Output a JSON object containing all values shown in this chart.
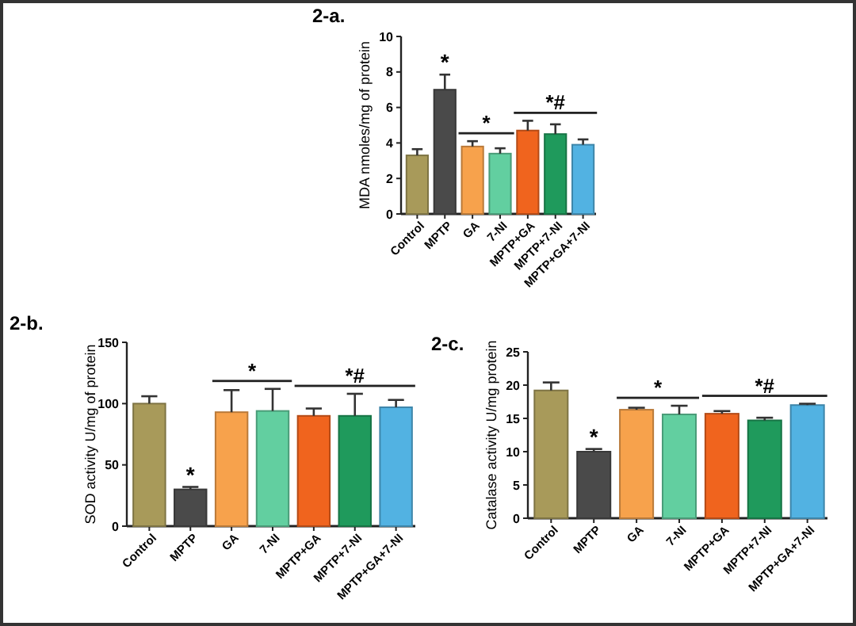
{
  "chart_data": [
    {
      "type": "bar",
      "title": "2-a.",
      "ylabel": "MDA nmoles/mg of protein",
      "categories": [
        "Control",
        "MPTP",
        "GA",
        "7-NI",
        "MPTP+GA",
        "MPTP+7-NI",
        "MPTP+GA+7-NI"
      ],
      "colors": [
        "#a89a5a",
        "#4a4a4a",
        "#f7a24c",
        "#62cfa0",
        "#f0641e",
        "#1f9a5c",
        "#52b2e2"
      ],
      "values": [
        3.3,
        7.0,
        3.8,
        3.4,
        4.7,
        4.5,
        3.9
      ],
      "errors": [
        [
          3.3,
          3.65
        ],
        [
          7.0,
          7.85
        ],
        [
          3.8,
          4.1
        ],
        [
          3.4,
          3.7
        ],
        [
          4.7,
          5.25
        ],
        [
          4.5,
          5.05
        ],
        [
          3.9,
          4.2
        ]
      ],
      "ylim": [
        0,
        10
      ],
      "yticks": [
        0,
        2,
        4,
        6,
        8,
        10
      ],
      "annotations": [
        "*",
        "*",
        "*#"
      ]
    },
    {
      "type": "bar",
      "title": "2-b.",
      "ylabel": "SOD activity U/mg of protein",
      "categories": [
        "Control",
        "MPTP",
        "GA",
        "7-NI",
        "MPTP+GA",
        "MPTP+7-NI",
        "MPTP+GA+7-NI"
      ],
      "colors": [
        "#a89a5a",
        "#4a4a4a",
        "#f7a24c",
        "#62cfa0",
        "#f0641e",
        "#1f9a5c",
        "#52b2e2"
      ],
      "values": [
        100,
        30,
        93,
        94,
        90,
        90,
        97
      ],
      "errors": [
        [
          100,
          106
        ],
        [
          30,
          32
        ],
        [
          93,
          111
        ],
        [
          94,
          112
        ],
        [
          90,
          96
        ],
        [
          90,
          108
        ],
        [
          97,
          103
        ]
      ],
      "ylim": [
        0,
        150
      ],
      "yticks": [
        0,
        50,
        100,
        150
      ],
      "annotations": [
        "*",
        "*",
        "*#"
      ]
    },
    {
      "type": "bar",
      "title": "2-c.",
      "ylabel": "Catalase activity U/mg protein",
      "categories": [
        "Control",
        "MPTP",
        "GA",
        "7-NI",
        "MPTP+GA",
        "MPTP+7-NI",
        "MPTP+GA+7-NI"
      ],
      "colors": [
        "#a89a5a",
        "#4a4a4a",
        "#f7a24c",
        "#62cfa0",
        "#f0641e",
        "#1f9a5c",
        "#52b2e2"
      ],
      "values": [
        19.2,
        10.0,
        16.3,
        15.6,
        15.7,
        14.7,
        17.0
      ],
      "errors": [
        [
          19.2,
          20.4
        ],
        [
          10.0,
          10.4
        ],
        [
          16.3,
          16.6
        ],
        [
          15.6,
          16.9
        ],
        [
          15.7,
          16.1
        ],
        [
          14.7,
          15.1
        ],
        [
          17.0,
          17.2
        ]
      ],
      "ylim": [
        0,
        25
      ],
      "yticks": [
        0,
        5,
        10,
        15,
        20,
        25
      ],
      "annotations": [
        "*",
        "*",
        "*#"
      ]
    }
  ]
}
